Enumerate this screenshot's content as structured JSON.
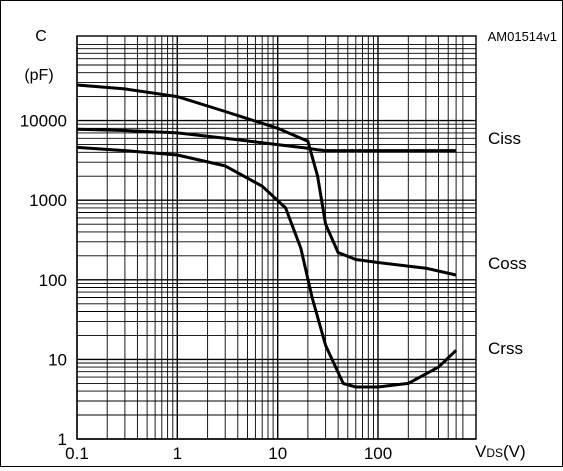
{
  "chart_data": {
    "type": "line",
    "figure_id": "AM01514v1",
    "y_axis": {
      "label_line1": "C",
      "label_line2": "(pF)",
      "scale": "log",
      "range": [
        1,
        50000
      ],
      "ticks": [
        "1",
        "10",
        "100",
        "1000",
        "10000"
      ]
    },
    "x_axis": {
      "label_main": "V",
      "label_sub": "DS",
      "label_unit": "(V)",
      "scale": "log",
      "range": [
        0.1,
        700
      ],
      "ticks": [
        "0.1",
        "1",
        "10",
        "100"
      ]
    },
    "grid": true,
    "series": [
      {
        "name": "Ciss",
        "x": [
          0.1,
          0.3,
          1,
          3,
          10,
          20,
          25,
          30,
          40,
          100,
          300,
          600
        ],
        "y": [
          7800,
          7500,
          7000,
          6000,
          5000,
          4500,
          4300,
          4200,
          4200,
          4200,
          4200,
          4200
        ]
      },
      {
        "name": "Coss",
        "x": [
          0.1,
          0.3,
          1,
          3,
          10,
          20,
          25,
          30,
          40,
          60,
          100,
          300,
          600
        ],
        "y": [
          28000,
          25000,
          20000,
          13000,
          8000,
          5500,
          2000,
          500,
          220,
          180,
          165,
          140,
          115
        ]
      },
      {
        "name": "Crss",
        "x": [
          0.1,
          0.3,
          1,
          3,
          7,
          12,
          17,
          22,
          30,
          45,
          60,
          100,
          200,
          400,
          600
        ],
        "y": [
          4600,
          4200,
          3700,
          2700,
          1500,
          800,
          250,
          60,
          15,
          5,
          4.5,
          4.5,
          5,
          8,
          13
        ]
      }
    ]
  }
}
